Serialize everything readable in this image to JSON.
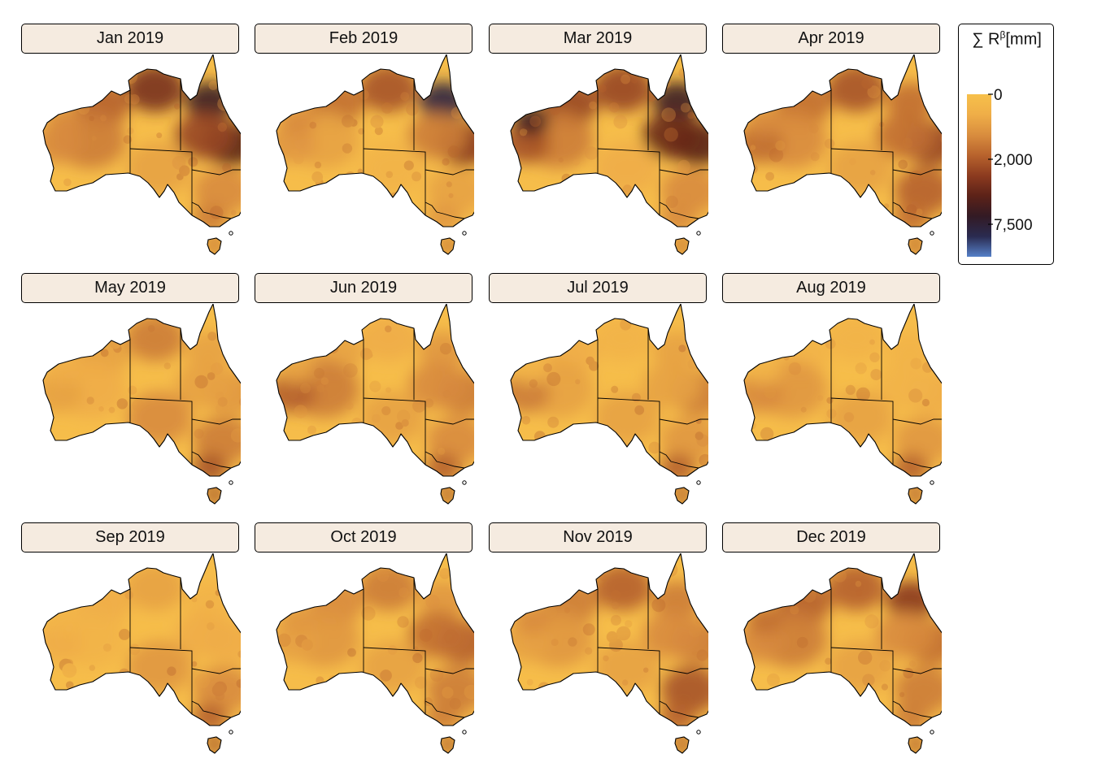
{
  "legend": {
    "symbol": "∑",
    "base": "R",
    "superscript": "β",
    "unit": "[mm]",
    "ticks": [
      "0",
      "2,000",
      "7,500"
    ],
    "tick_fractions": [
      0.0,
      0.4,
      0.8
    ],
    "colors": [
      "#f7c04a",
      "#efae48",
      "#d98d3e",
      "#b8632d",
      "#8c3b1f",
      "#5c2218",
      "#331a24",
      "#2a2b50",
      "#5580c8"
    ]
  },
  "panels": [
    {
      "label": "Jan 2019",
      "intensity": {
        "north_wa": 0.45,
        "nt_top": 0.65,
        "qld_north": 0.85,
        "qld_coast": 0.75,
        "qld_inland": 0.55,
        "wa_central": 0.35,
        "wa_west": 0.3,
        "sa": 0.2,
        "nsw": 0.3,
        "vic": 0.35,
        "tas": 0.4,
        "pilbara": 0.3
      }
    },
    {
      "label": "Feb 2019",
      "intensity": {
        "north_wa": 0.4,
        "nt_top": 0.5,
        "qld_north": 0.98,
        "qld_coast": 0.6,
        "qld_inland": 0.35,
        "wa_central": 0.2,
        "wa_west": 0.25,
        "sa": 0.1,
        "nsw": 0.2,
        "vic": 0.25,
        "tas": 0.4,
        "pilbara": 0.3
      }
    },
    {
      "label": "Mar 2019",
      "intensity": {
        "north_wa": 0.55,
        "nt_top": 0.55,
        "qld_north": 0.85,
        "qld_coast": 0.75,
        "qld_inland": 0.7,
        "wa_central": 0.35,
        "wa_west": 0.5,
        "sa": 0.15,
        "nsw": 0.3,
        "vic": 0.3,
        "tas": 0.4,
        "pilbara": 0.85
      }
    },
    {
      "label": "Apr 2019",
      "intensity": {
        "north_wa": 0.4,
        "nt_top": 0.5,
        "qld_north": 0.4,
        "qld_coast": 0.55,
        "qld_inland": 0.4,
        "wa_central": 0.3,
        "wa_west": 0.4,
        "sa": 0.2,
        "nsw": 0.45,
        "vic": 0.4,
        "tas": 0.45,
        "pilbara": 0.3
      }
    },
    {
      "label": "May 2019",
      "intensity": {
        "north_wa": 0.2,
        "nt_top": 0.35,
        "qld_north": 0.2,
        "qld_coast": 0.25,
        "qld_inland": 0.2,
        "wa_central": 0.15,
        "wa_west": 0.2,
        "sa": 0.3,
        "nsw": 0.35,
        "vic": 0.5,
        "tas": 0.55,
        "pilbara": 0.15
      }
    },
    {
      "label": "Jun 2019",
      "intensity": {
        "north_wa": 0.2,
        "nt_top": 0.15,
        "qld_north": 0.25,
        "qld_coast": 0.35,
        "qld_inland": 0.3,
        "wa_central": 0.35,
        "wa_west": 0.45,
        "sa": 0.2,
        "nsw": 0.3,
        "vic": 0.45,
        "tas": 0.5,
        "pilbara": 0.2
      }
    },
    {
      "label": "Jul 2019",
      "intensity": {
        "north_wa": 0.15,
        "nt_top": 0.1,
        "qld_north": 0.2,
        "qld_coast": 0.35,
        "qld_inland": 0.2,
        "wa_central": 0.2,
        "wa_west": 0.35,
        "sa": 0.2,
        "nsw": 0.25,
        "vic": 0.45,
        "tas": 0.5,
        "pilbara": 0.1
      }
    },
    {
      "label": "Aug 2019",
      "intensity": {
        "north_wa": 0.1,
        "nt_top": 0.1,
        "qld_north": 0.1,
        "qld_coast": 0.15,
        "qld_inland": 0.1,
        "wa_central": 0.25,
        "wa_west": 0.3,
        "sa": 0.2,
        "nsw": 0.25,
        "vic": 0.45,
        "tas": 0.5,
        "pilbara": 0.1
      }
    },
    {
      "label": "Sep 2019",
      "intensity": {
        "north_wa": 0.15,
        "nt_top": 0.2,
        "qld_north": 0.1,
        "qld_coast": 0.15,
        "qld_inland": 0.15,
        "wa_central": 0.1,
        "wa_west": 0.15,
        "sa": 0.25,
        "nsw": 0.3,
        "vic": 0.45,
        "tas": 0.55,
        "pilbara": 0.1
      }
    },
    {
      "label": "Oct 2019",
      "intensity": {
        "north_wa": 0.3,
        "nt_top": 0.35,
        "qld_north": 0.25,
        "qld_coast": 0.45,
        "qld_inland": 0.4,
        "wa_central": 0.25,
        "wa_west": 0.2,
        "sa": 0.2,
        "nsw": 0.35,
        "vic": 0.35,
        "tas": 0.5,
        "pilbara": 0.25
      }
    },
    {
      "label": "Nov 2019",
      "intensity": {
        "north_wa": 0.35,
        "nt_top": 0.45,
        "qld_north": 0.35,
        "qld_coast": 0.35,
        "qld_inland": 0.3,
        "wa_central": 0.25,
        "wa_west": 0.2,
        "sa": 0.2,
        "nsw": 0.5,
        "vic": 0.45,
        "tas": 0.5,
        "pilbara": 0.3
      }
    },
    {
      "label": "Dec 2019",
      "intensity": {
        "north_wa": 0.45,
        "nt_top": 0.45,
        "qld_north": 0.6,
        "qld_coast": 0.4,
        "qld_inland": 0.3,
        "wa_central": 0.35,
        "wa_west": 0.3,
        "sa": 0.2,
        "nsw": 0.35,
        "vic": 0.35,
        "tas": 0.5,
        "pilbara": 0.4
      }
    }
  ]
}
